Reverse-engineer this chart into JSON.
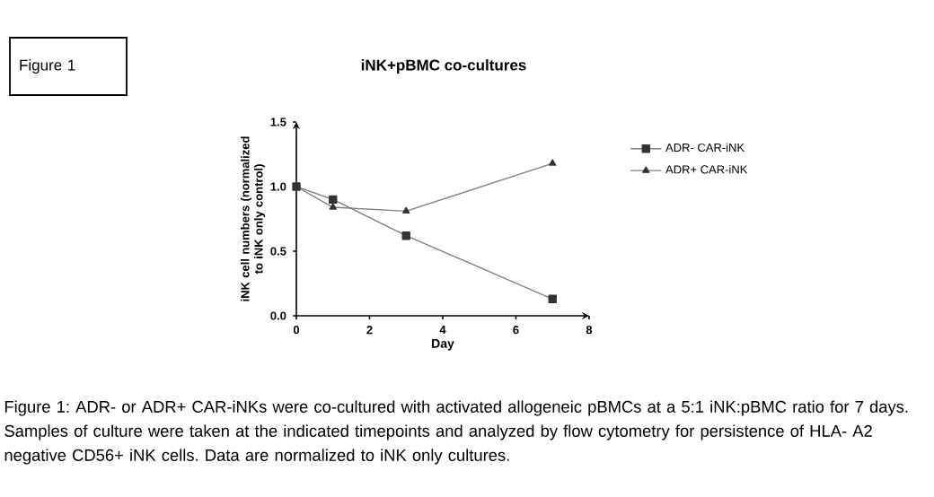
{
  "chart_data": {
    "type": "line",
    "title": "iNK+pBMC co-cultures",
    "xlabel": "Day",
    "ylabel": "iNK cell numbers (normalized to iNK only control)",
    "x": [
      0,
      1,
      3,
      7
    ],
    "series": [
      {
        "name": "ADR- CAR-iNK",
        "color": "#333333",
        "marker": "square",
        "values": [
          1.0,
          0.9,
          0.62,
          0.13
        ]
      },
      {
        "name": "ADR+ CAR-iNK",
        "color": "#333333",
        "marker": "triangle",
        "values": [
          1.0,
          0.84,
          0.81,
          1.18
        ]
      }
    ],
    "xlim": [
      0,
      8
    ],
    "ylim": [
      0,
      1.5
    ],
    "xticks": [
      0,
      2,
      4,
      6,
      8
    ],
    "yticks": [
      {
        "value": 0,
        "label": "0.0"
      },
      {
        "value": 0.5,
        "label": "0.5"
      },
      {
        "value": 1.0,
        "label": "1.0"
      },
      {
        "value": 1.5,
        "label": "1.5"
      }
    ],
    "grid": false,
    "legend": "right",
    "annotations": [
      "Figure 1",
      "Figure 1: ADR- or ADR+ CAR-iNKs were co-cultured with activated allogeneic pBMCs at a 5:1 iNK:pBMC ratio for 7 days. Samples of culture were taken at the indicated timepoints and analyzed by flow cytometry for persistence of HLA- A2 negative CD56+ iNK cells. Data are normalized to iNK only cultures."
    ]
  }
}
